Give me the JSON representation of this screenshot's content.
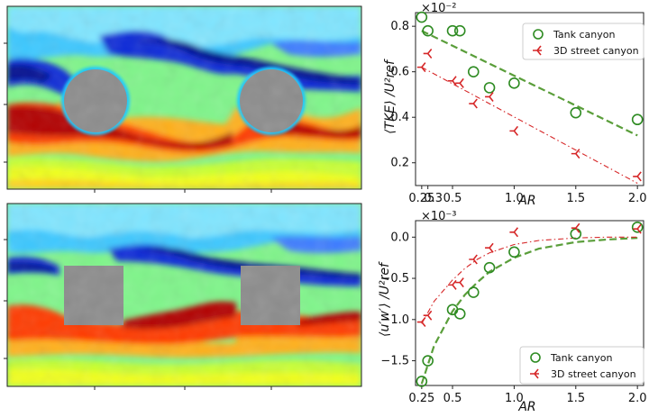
{
  "chart_data": [
    {
      "type": "scatter",
      "panel": "top-right",
      "xlabel": "AR",
      "ylabel": "⟨TKE⟩ /U²ref",
      "multiplier": "×10⁻²",
      "xlim": [
        0.2,
        2.05
      ],
      "ylim": [
        0.1,
        0.86
      ],
      "x_ticks": [
        0.25,
        0.5,
        1.0,
        1.5,
        2.0
      ],
      "x_tick_labels": [
        "0.25",
        "0.5",
        "1.0",
        "1.5",
        "2.0"
      ],
      "extra_x_tick": {
        "value": 0.3,
        "label": "0.3"
      },
      "y_ticks": [
        0.2,
        0.4,
        0.6,
        0.8
      ],
      "y_tick_labels": [
        "0.2",
        "0.4",
        "0.6",
        "0.8"
      ],
      "legend_position": "top-right",
      "series": [
        {
          "name": "Tank canyon",
          "marker": "circle",
          "color": "#2e8b22",
          "x": [
            0.25,
            0.3,
            0.5,
            0.56,
            0.67,
            0.8,
            1.0,
            1.5,
            2.0
          ],
          "y": [
            0.84,
            0.78,
            0.78,
            0.78,
            0.6,
            0.53,
            0.55,
            0.42,
            0.39
          ],
          "fit_line": {
            "x": [
              0.25,
              2.0
            ],
            "y": [
              0.78,
              0.32
            ],
            "style": "dashed",
            "color": "#5a9e3a"
          }
        },
        {
          "name": "3D street canyon",
          "marker": "tri_left",
          "color": "#d62728",
          "x": [
            0.25,
            0.3,
            0.5,
            0.56,
            0.67,
            0.8,
            1.0,
            1.5,
            2.0
          ],
          "y": [
            0.62,
            0.68,
            0.56,
            0.55,
            0.46,
            0.49,
            0.34,
            0.24,
            0.14
          ],
          "fit_line": {
            "x": [
              0.25,
              2.0
            ],
            "y": [
              0.62,
              0.11
            ],
            "style": "dashdot",
            "color": "#d62728"
          }
        }
      ]
    },
    {
      "type": "scatter",
      "panel": "bottom-right",
      "xlabel": "AR",
      "ylabel": "⟨u′w′⟩ /U²ref",
      "multiplier": "×10⁻³",
      "xlim": [
        0.2,
        2.05
      ],
      "ylim": [
        -1.8,
        0.2
      ],
      "x_ticks": [
        0.25,
        0.5,
        1.0,
        1.5,
        2.0
      ],
      "x_tick_labels": [
        "0.25",
        "0.5",
        "1.0",
        "1.5",
        "2.0"
      ],
      "y_ticks": [
        -1.5,
        -1.0,
        -0.5,
        0.0
      ],
      "y_tick_labels": [
        "−1.5",
        "−1.0",
        "−0.5",
        "0.0"
      ],
      "legend_position": "bottom-right",
      "series": [
        {
          "name": "Tank canyon",
          "marker": "circle",
          "color": "#2e8b22",
          "x": [
            0.25,
            0.3,
            0.5,
            0.56,
            0.67,
            0.8,
            1.0,
            1.5,
            2.0
          ],
          "y": [
            -1.75,
            -1.5,
            -0.88,
            -0.93,
            -0.67,
            -0.37,
            -0.18,
            0.04,
            0.12
          ],
          "fit_curve": {
            "x": [
              0.25,
              0.35,
              0.5,
              0.6,
              0.7,
              0.8,
              1.0,
              1.2,
              1.5,
              1.75,
              2.0
            ],
            "y": [
              -1.78,
              -1.32,
              -0.9,
              -0.7,
              -0.55,
              -0.42,
              -0.25,
              -0.14,
              -0.06,
              -0.03,
              -0.01
            ],
            "style": "dashed",
            "color": "#5a9e3a"
          }
        },
        {
          "name": "3D street canyon",
          "marker": "tri_left",
          "color": "#d62728",
          "x": [
            0.25,
            0.3,
            0.5,
            0.56,
            0.67,
            0.8,
            1.0,
            1.5,
            2.0
          ],
          "y": [
            -1.03,
            -0.95,
            -0.58,
            -0.55,
            -0.27,
            -0.13,
            0.06,
            0.11,
            0.1
          ],
          "fit_curve": {
            "x": [
              0.25,
              0.35,
              0.5,
              0.6,
              0.7,
              0.8,
              1.0,
              1.2,
              1.5,
              1.75,
              2.0
            ],
            "y": [
              -1.05,
              -0.78,
              -0.52,
              -0.38,
              -0.27,
              -0.19,
              -0.09,
              -0.04,
              -0.01,
              0.0,
              0.0
            ],
            "style": "dashdot",
            "color": "#d62728"
          }
        }
      ]
    }
  ],
  "legend": {
    "tank_label": "Tank canyon",
    "street_label": "3D street canyon"
  },
  "colors": {
    "tank": "#2e8b22",
    "street": "#d62728",
    "obstacle": "#8c8c8c",
    "field_background": "#7ff58a"
  },
  "flow_panels": [
    {
      "name": "cylinder-field",
      "obstacle_shape": "circle"
    },
    {
      "name": "square-field",
      "obstacle_shape": "square"
    }
  ]
}
